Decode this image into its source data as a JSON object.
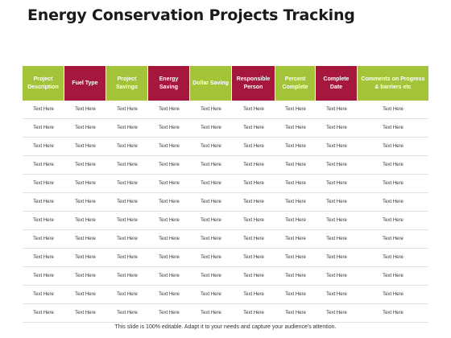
{
  "title": "Energy Conservation Projects Tracking",
  "columns": [
    {
      "label": "Project Description",
      "color": "#a3c439"
    },
    {
      "label": "Fuel Type",
      "color": "#a6173d"
    },
    {
      "label": "Project Savings",
      "color": "#a3c439"
    },
    {
      "label": "Energy Saving",
      "color": "#a6173d"
    },
    {
      "label": "Dollar Saving",
      "color": "#a3c439"
    },
    {
      "label": "Responsible Person",
      "color": "#a6173d"
    },
    {
      "label": "Percent Complete",
      "color": "#a3c439"
    },
    {
      "label": "Complete Date",
      "color": "#a6173d"
    },
    {
      "label": "Comments on Progress & barriers etc",
      "color": "#a3c439"
    }
  ],
  "rows": [
    [
      "Text Here",
      "Text Here",
      "Text Here",
      "Text Here",
      "Text Here",
      "Text Here",
      "Text Here",
      "Text Here",
      "Text Here"
    ],
    [
      "Text Here",
      "Text Here",
      "Text Here",
      "Text Here",
      "Text Here",
      "Text Here",
      "Text Here",
      "Text Here",
      "Text Here"
    ],
    [
      "Text Here",
      "Text Here",
      "Text Here",
      "Text Here",
      "Text Here",
      "Text Here",
      "Text Here",
      "Text Here",
      "Text Here"
    ],
    [
      "Text Here",
      "Text Here",
      "Text Here",
      "Text Here",
      "Text Here",
      "Text Here",
      "Text Here",
      "Text Here",
      "Text Here"
    ],
    [
      "Text Here",
      "Text Here",
      "Text Here",
      "Text Here",
      "Text Here",
      "Text Here",
      "Text Here",
      "Text Here",
      "Text Here"
    ],
    [
      "Text Here",
      "Text Here",
      "Text Here",
      "Text Here",
      "Text Here",
      "Text Here",
      "Text Here",
      "Text Here",
      "Text Here"
    ],
    [
      "Text Here",
      "Text Here",
      "Text Here",
      "Text Here",
      "Text Here",
      "Text Here",
      "Text Here",
      "Text Here",
      "Text Here"
    ],
    [
      "Text Here",
      "Text Here",
      "Text Here",
      "Text Here",
      "Text Here",
      "Text Here",
      "Text Here",
      "Text Here",
      "Text Here"
    ],
    [
      "Text Here",
      "Text Here",
      "Text Here",
      "Text Here",
      "Text Here",
      "Text Here",
      "Text Here",
      "Text Here",
      "Text Here"
    ],
    [
      "Text Here",
      "Text Here",
      "Text Here",
      "Text Here",
      "Text Here",
      "Text Here",
      "Text Here",
      "Text Here",
      "Text Here"
    ],
    [
      "Text Here",
      "Text Here",
      "Text Here",
      "Text Here",
      "Text Here",
      "Text Here",
      "Text Here",
      "Text Here",
      "Text Here"
    ],
    [
      "Text Here",
      "Text Here",
      "Text Here",
      "Text Here",
      "Text Here",
      "Text Here",
      "Text Here",
      "Text Here",
      "Text Here"
    ]
  ],
  "footer": "This slide is 100% editable. Adapt it to your needs and capture your audience's attention."
}
